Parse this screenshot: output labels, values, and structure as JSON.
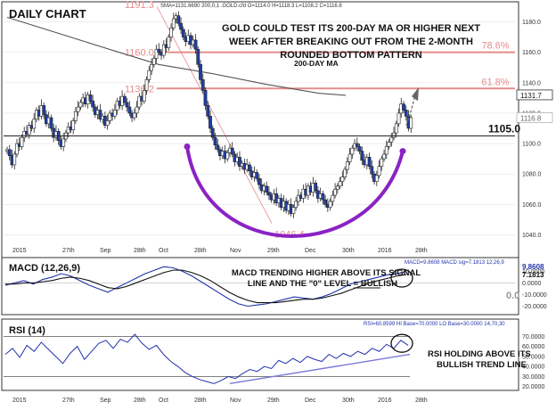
{
  "header": {
    "title": "DAILY CHART",
    "info": "SMA=1131.6690  200,0,1    .GOLD.cfd O=1114.0 H=1118.3 L=1108.2 C=1116.8"
  },
  "colors": {
    "candle_up": "#ffffff",
    "candle_down": "#1f3fa8",
    "fib": "#e58b8b",
    "ma": "#555555",
    "pattern_arc": "#8b22c4",
    "macd": "#2233aa",
    "signal": "#111111",
    "rsi": "#2233aa",
    "trendline": "#7a7ad8",
    "arrow": "#666666"
  },
  "chart_data": [
    {
      "type": "candlestick",
      "panel": "price",
      "title": "DAILY CHART",
      "x_tick_labels": [
        "2015",
        "27th",
        "Sep",
        "28th",
        "Oct",
        "28th",
        "Nov",
        "29th",
        "Dec",
        "30th",
        "2016",
        "28th"
      ],
      "y_tick_labels": [
        "1040.0",
        "1060.0",
        "1080.0",
        "1100.0",
        "1120.0",
        "1140.0",
        "1160.0",
        "1180.0"
      ],
      "ylim": [
        1035,
        1192
      ],
      "closes": [
        1096,
        1092,
        1086,
        1093,
        1100,
        1098,
        1104,
        1108,
        1106,
        1112,
        1110,
        1116,
        1122,
        1118,
        1125,
        1119,
        1113,
        1117,
        1110,
        1104,
        1108,
        1102,
        1098,
        1103,
        1107,
        1111,
        1109,
        1115,
        1121,
        1124,
        1127,
        1130,
        1126,
        1132,
        1128,
        1124,
        1119,
        1122,
        1116,
        1118,
        1112,
        1115,
        1120,
        1118,
        1122,
        1128,
        1125,
        1131,
        1127,
        1124,
        1120,
        1117,
        1120,
        1124,
        1131,
        1128,
        1135,
        1142,
        1148,
        1152,
        1156,
        1162,
        1160,
        1158,
        1165,
        1163,
        1170,
        1176,
        1182,
        1184,
        1179,
        1175,
        1170,
        1167,
        1171,
        1165,
        1168,
        1162,
        1152,
        1142,
        1135,
        1125,
        1118,
        1110,
        1104,
        1099,
        1096,
        1092,
        1095,
        1090,
        1094,
        1097,
        1093,
        1088,
        1091,
        1085,
        1087,
        1083,
        1086,
        1082,
        1078,
        1081,
        1077,
        1073,
        1069,
        1072,
        1068,
        1066,
        1063,
        1067,
        1061,
        1064,
        1058,
        1062,
        1056,
        1060,
        1054,
        1058,
        1062,
        1066,
        1064,
        1070,
        1066,
        1072,
        1068,
        1074,
        1069,
        1064,
        1067,
        1063,
        1060,
        1058,
        1062,
        1066,
        1070,
        1072,
        1075,
        1078,
        1083,
        1088,
        1093,
        1097,
        1100,
        1098,
        1095,
        1089,
        1086,
        1091,
        1085,
        1080,
        1075,
        1079,
        1085,
        1090,
        1093,
        1098,
        1101,
        1104,
        1107,
        1113,
        1120,
        1126,
        1122,
        1118,
        1110,
        1117
      ],
      "ma_label": "200-DAY MA",
      "ma_200": [
        [
          0,
          1183
        ],
        [
          60,
          1172
        ],
        [
          120,
          1161
        ],
        [
          170,
          1152
        ],
        [
          230,
          1146
        ],
        [
          290,
          1139
        ],
        [
          350,
          1133
        ],
        [
          380,
          1131.7
        ]
      ],
      "fibonacci_levels": [
        {
          "label": "78.6%",
          "price": 1160.0,
          "note": "1160.0"
        },
        {
          "label": "61.8%",
          "price": 1136.2,
          "note": "1136.2"
        }
      ],
      "swing_labels": [
        {
          "label": "1191.3",
          "price": 1191.3
        },
        {
          "label": "1046.4",
          "price": 1046.4
        }
      ],
      "support_level": {
        "label": "1105.0",
        "price": 1105.0
      },
      "last_price_label": "1131.7",
      "current_price_label": "1116.8",
      "annotation": [
        "GOLD COULD TEST ITS 200-DAY MA OR HIGHER NEXT",
        "WEEK AFTER BREAKING OUT FROM THE 2-MONTH",
        "ROUNDED BOTTOM PATTERN"
      ]
    },
    {
      "type": "line",
      "panel": "macd",
      "title": "MACD (12,26,9)",
      "info": "MACD=9.8608 MACD sig=7.1813   12,26,9",
      "y_tick_labels": [
        "10.0000",
        "0.0000",
        "-10.0000",
        "-20.0000"
      ],
      "ylim": [
        -25,
        18
      ],
      "zero_label": "0.0",
      "value_labels": [
        "9.8608",
        "7.1813"
      ],
      "series": [
        {
          "name": "MACD",
          "values": [
            -2,
            0,
            2,
            -1,
            3,
            5,
            8,
            6,
            2,
            -2,
            -5,
            -8,
            -4,
            0,
            4,
            8,
            11,
            14,
            13,
            10,
            6,
            1,
            -4,
            -9,
            -14,
            -18,
            -20,
            -19,
            -18,
            -16,
            -14,
            -12,
            -13,
            -14,
            -12,
            -9,
            -5,
            -1,
            1,
            3,
            5,
            7,
            8,
            10
          ]
        },
        {
          "name": "signal",
          "values": [
            -1,
            -1,
            0,
            0,
            1,
            2,
            4,
            5,
            4,
            2,
            -1,
            -4,
            -5,
            -3,
            0,
            3,
            6,
            9,
            11,
            11,
            9,
            6,
            2,
            -3,
            -8,
            -12,
            -15,
            -17,
            -17,
            -17,
            -16,
            -15,
            -14,
            -14,
            -13,
            -11,
            -9,
            -6,
            -3,
            0,
            2,
            4,
            6,
            7.2
          ]
        }
      ],
      "annotation": [
        "MACD TRENDING HIGHER ABOVE ITS SIGNAL",
        "LINE AND THE \"0\" LEVEL = BULLISH"
      ],
      "annotation_emphasis": "BULLISH"
    },
    {
      "type": "line",
      "panel": "rsi",
      "title": "RSI (14)",
      "info": "RSI=60.8599 HI Base=70.0000 LO Base=30.0000   14,70,30",
      "y_tick_labels": [
        "70.0000",
        "60.0000",
        "50.0000",
        "40.0000",
        "30.0000",
        "20.0000"
      ],
      "ylim": [
        18,
        80
      ],
      "levels": [
        70,
        30
      ],
      "series": [
        {
          "name": "RSI",
          "values": [
            52,
            58,
            49,
            61,
            55,
            64,
            57,
            50,
            43,
            53,
            60,
            47,
            55,
            63,
            66,
            58,
            67,
            64,
            72,
            63,
            57,
            61,
            52,
            45,
            40,
            34,
            30,
            27,
            25,
            23,
            26,
            30,
            28,
            33,
            37,
            35,
            40,
            38,
            46,
            43,
            48,
            44,
            50,
            47,
            45,
            52,
            48,
            53,
            50,
            55,
            52,
            58,
            55,
            62,
            58,
            66,
            61
          ]
        }
      ],
      "trend_line": {
        "from": 23,
        "to": 60
      },
      "annotation": [
        "RSI HOLDING ABOVE ITS",
        "BULLISH TREND LINE"
      ]
    }
  ]
}
